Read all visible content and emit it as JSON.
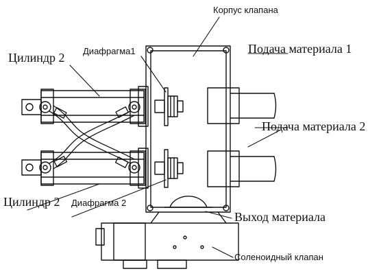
{
  "labels": {
    "valve_body": "Корпус клапана",
    "diaphragm_1": "Диафрагма1",
    "cylinder_top": "Цилиндр 2",
    "feed_1": "Подача материала 1",
    "feed_2": "Подача материала 2",
    "cylinder_bottom": "Цилиндр 2",
    "diaphragm_2": "Диафрагма 2",
    "outlet": "Выход материала",
    "solenoid": "Соленоидный клапан"
  },
  "colors": {
    "line": "#111111",
    "background": "#ffffff"
  }
}
